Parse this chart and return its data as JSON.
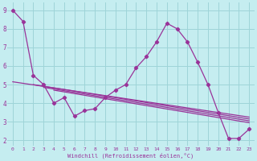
{
  "xlabel": "Windchill (Refroidissement éolien,°C)",
  "bg_color": "#c5edf0",
  "grid_color": "#9ed4d8",
  "line_color": "#993399",
  "xlim": [
    -0.5,
    23.5
  ],
  "ylim": [
    1.7,
    9.4
  ],
  "yticks": [
    2,
    3,
    4,
    5,
    6,
    7,
    8,
    9
  ],
  "xticks": [
    0,
    1,
    2,
    3,
    4,
    5,
    6,
    7,
    8,
    9,
    10,
    11,
    12,
    13,
    14,
    15,
    16,
    17,
    18,
    19,
    20,
    21,
    22,
    23
  ],
  "main_x": [
    0,
    1,
    2,
    3,
    4,
    5,
    6,
    7,
    8,
    9,
    10,
    11,
    12,
    13,
    14,
    15,
    16,
    17,
    18,
    19,
    20,
    21,
    22,
    23
  ],
  "main_y": [
    9.0,
    8.4,
    5.5,
    5.0,
    4.0,
    4.3,
    3.3,
    3.6,
    3.7,
    4.3,
    4.7,
    5.0,
    5.9,
    6.5,
    7.3,
    8.3,
    8.0,
    7.3,
    6.2,
    5.0,
    3.5,
    2.1,
    2.1,
    2.6
  ],
  "trend1_x": [
    0,
    23
  ],
  "trend1_y": [
    5.2,
    3.2
  ],
  "trend2_x": [
    2,
    23
  ],
  "trend2_y": [
    5.0,
    3.1
  ],
  "trend3_x": [
    3,
    23
  ],
  "trend3_y": [
    4.9,
    3.05
  ],
  "trend4_x": [
    4,
    23
  ],
  "trend4_y": [
    4.8,
    3.0
  ]
}
